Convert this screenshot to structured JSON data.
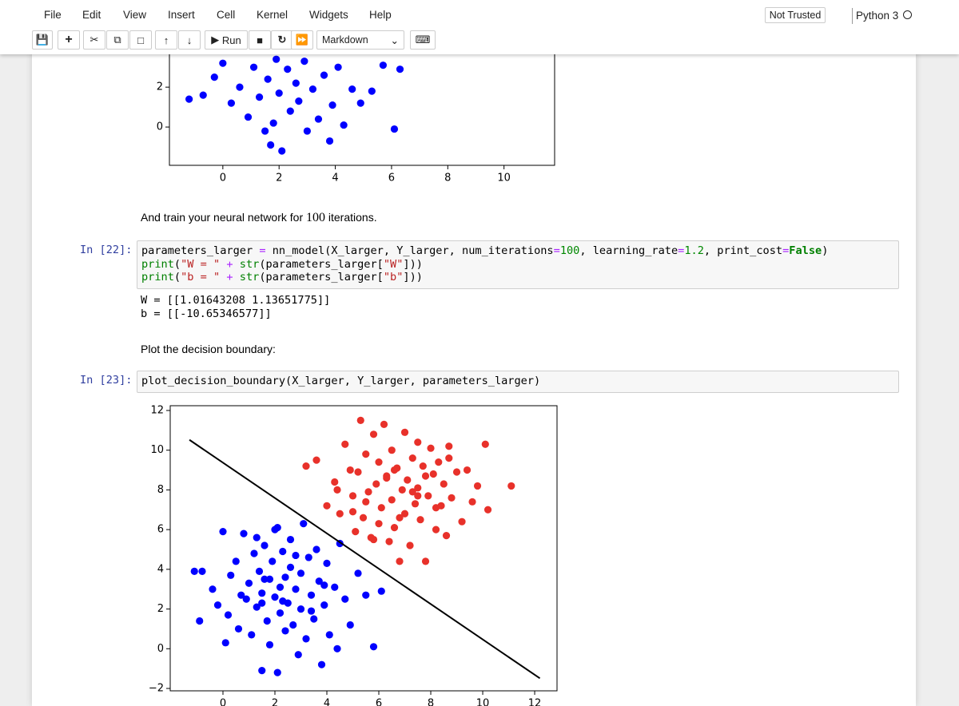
{
  "menu": [
    "File",
    "Edit",
    "View",
    "Insert",
    "Cell",
    "Kernel",
    "Widgets",
    "Help"
  ],
  "trust": "Not Trusted",
  "kernel": "Python 3",
  "toolbar": {
    "run": "Run",
    "cell_type": "Markdown"
  },
  "markdown_1": {
    "before": "And train your neural network for ",
    "math": "100",
    "after": " iterations."
  },
  "cell_22": {
    "prompt": "In [22]:",
    "code": [
      "parameters_larger = nn_model(X_larger, Y_larger, num_iterations=100, learning_rate=1.2, print_cost=False)",
      "print(\"W = \" + str(parameters_larger[\"W\"]))",
      "print(\"b = \" + str(parameters_larger[\"b\"]))"
    ],
    "output": [
      "W = [[1.01643208 1.13651775]]",
      "b = [[-10.65346577]]"
    ]
  },
  "markdown_2": "Plot the decision boundary:",
  "cell_23": {
    "prompt": "In [23]:",
    "code": [
      "plot_decision_boundary(X_larger, Y_larger, parameters_larger)"
    ]
  },
  "chart_data": [
    {
      "type": "scatter",
      "xlim": [
        -1.9,
        11.8
      ],
      "ylim": [
        -1.92,
        12.3
      ],
      "xticks": [
        0,
        2,
        4,
        6,
        8,
        10
      ],
      "yticks": [
        0,
        2
      ],
      "series": [
        {
          "color": "#0000ff",
          "x": [
            -1.2,
            -0.7,
            -0.3,
            0,
            0.3,
            0.6,
            0.9,
            1.1,
            1.3,
            1.5,
            1.6,
            1.8,
            1.9,
            2.0,
            2.1,
            2.3,
            2.4,
            2.6,
            2.7,
            2.9,
            3.0,
            3.2,
            3.4,
            3.6,
            3.8,
            3.9,
            4.1,
            4.3,
            4.6,
            4.9,
            5.3,
            5.7,
            6.1,
            6.3,
            1.7
          ],
          "y": [
            1.4,
            1.6,
            2.5,
            3.2,
            1.2,
            2.0,
            0.5,
            3.0,
            1.5,
            -0.2,
            2.4,
            0.2,
            3.4,
            1.7,
            -1.2,
            2.9,
            0.8,
            2.2,
            1.3,
            3.3,
            -0.2,
            1.9,
            0.4,
            2.6,
            -0.7,
            1.1,
            3.0,
            0.1,
            1.9,
            1.2,
            1.8,
            3.1,
            -0.1,
            2.9,
            -0.9
          ]
        }
      ]
    },
    {
      "type": "scatter",
      "xlim": [
        -2.03,
        12.86
      ],
      "ylim": [
        -2.12,
        12.24
      ],
      "xticks": [
        0,
        2,
        4,
        6,
        8,
        10,
        12
      ],
      "yticks": [
        {
          "value": -2,
          "label": "−2"
        },
        0,
        2,
        4,
        6,
        8,
        10,
        12
      ],
      "series": [
        {
          "color": "#0000ff",
          "x": [
            -1.1,
            -0.9,
            -0.4,
            -0.2,
            0,
            0.2,
            0.3,
            0.5,
            0.6,
            0.8,
            0.9,
            1,
            1.1,
            1.2,
            1.3,
            1.4,
            1.5,
            1.5,
            1.6,
            1.7,
            1.8,
            1.8,
            1.9,
            2,
            2,
            2.1,
            2.2,
            2.2,
            2.3,
            2.4,
            2.4,
            2.5,
            2.6,
            2.6,
            2.7,
            2.8,
            2.9,
            3,
            3,
            3.1,
            3.2,
            3.3,
            3.4,
            3.5,
            3.6,
            3.7,
            3.8,
            3.9,
            4,
            4.1,
            4.3,
            4.5,
            4.7,
            4.9,
            5.2,
            5.5,
            5.8,
            6.1,
            -0.8,
            0.1,
            0.7,
            1.3,
            1.6,
            2.3,
            2.8,
            3.4,
            3.9,
            4.4,
            1.5,
            2.1
          ],
          "y": [
            3.9,
            1.4,
            3.0,
            2.2,
            5.9,
            1.7,
            3.7,
            4.4,
            1.0,
            5.8,
            2.5,
            3.3,
            0.7,
            4.8,
            2.1,
            3.9,
            -1.1,
            2.8,
            5.2,
            1.4,
            3.5,
            0.2,
            4.4,
            2.6,
            6.0,
            -1.2,
            3.1,
            1.8,
            4.9,
            0.9,
            3.6,
            2.3,
            5.5,
            4.1,
            1.2,
            3.0,
            -0.3,
            3.8,
            2.0,
            6.3,
            0.5,
            4.6,
            2.7,
            1.5,
            5.0,
            3.4,
            -0.8,
            2.2,
            4.3,
            0.7,
            3.1,
            5.3,
            2.5,
            1.2,
            3.8,
            2.7,
            0.1,
            2.9,
            3.9,
            0.3,
            2.7,
            5.6,
            3.5,
            2.4,
            4.7,
            1.9,
            3.2,
            0.0,
            2.3,
            6.1
          ]
        },
        {
          "color": "#e8312a",
          "x": [
            3.2,
            3.6,
            4.0,
            4.3,
            4.5,
            4.7,
            4.9,
            5.0,
            5.1,
            5.2,
            5.3,
            5.4,
            5.5,
            5.6,
            5.7,
            5.8,
            5.9,
            6.0,
            6.0,
            6.1,
            6.2,
            6.3,
            6.4,
            6.5,
            6.5,
            6.6,
            6.7,
            6.8,
            6.9,
            7.0,
            7.0,
            7.1,
            7.2,
            7.3,
            7.4,
            7.5,
            7.5,
            7.6,
            7.7,
            7.8,
            7.9,
            8.0,
            8.1,
            8.2,
            8.3,
            8.4,
            8.5,
            8.6,
            8.7,
            8.8,
            9.0,
            9.2,
            9.4,
            9.6,
            9.8,
            10.1,
            10.2,
            11.1,
            4.4,
            5.0,
            5.5,
            6.3,
            6.8,
            7.3,
            7.8,
            8.2,
            8.7,
            5.8,
            6.6,
            7.5
          ],
          "y": [
            9.2,
            9.5,
            7.2,
            8.4,
            6.8,
            10.3,
            9.0,
            7.7,
            5.9,
            8.9,
            11.5,
            6.6,
            9.8,
            7.9,
            5.6,
            10.8,
            8.3,
            6.3,
            9.4,
            7.1,
            11.3,
            8.7,
            5.4,
            10.0,
            7.5,
            6.1,
            9.1,
            4.4,
            8.0,
            10.9,
            6.8,
            8.5,
            5.2,
            9.6,
            7.3,
            10.4,
            8.1,
            6.5,
            9.2,
            4.4,
            7.7,
            10.1,
            8.8,
            6.0,
            9.4,
            7.2,
            8.3,
            5.7,
            10.2,
            7.6,
            8.9,
            6.4,
            9.0,
            7.4,
            8.2,
            10.3,
            7.0,
            8.2,
            8.0,
            6.9,
            7.4,
            8.6,
            6.6,
            7.9,
            8.7,
            7.1,
            9.6,
            5.5,
            9.0,
            7.7
          ]
        }
      ],
      "line": {
        "color": "#000000",
        "x": [
          -1.29,
          12.2
        ],
        "y": [
          10.52,
          -1.49
        ]
      }
    }
  ]
}
